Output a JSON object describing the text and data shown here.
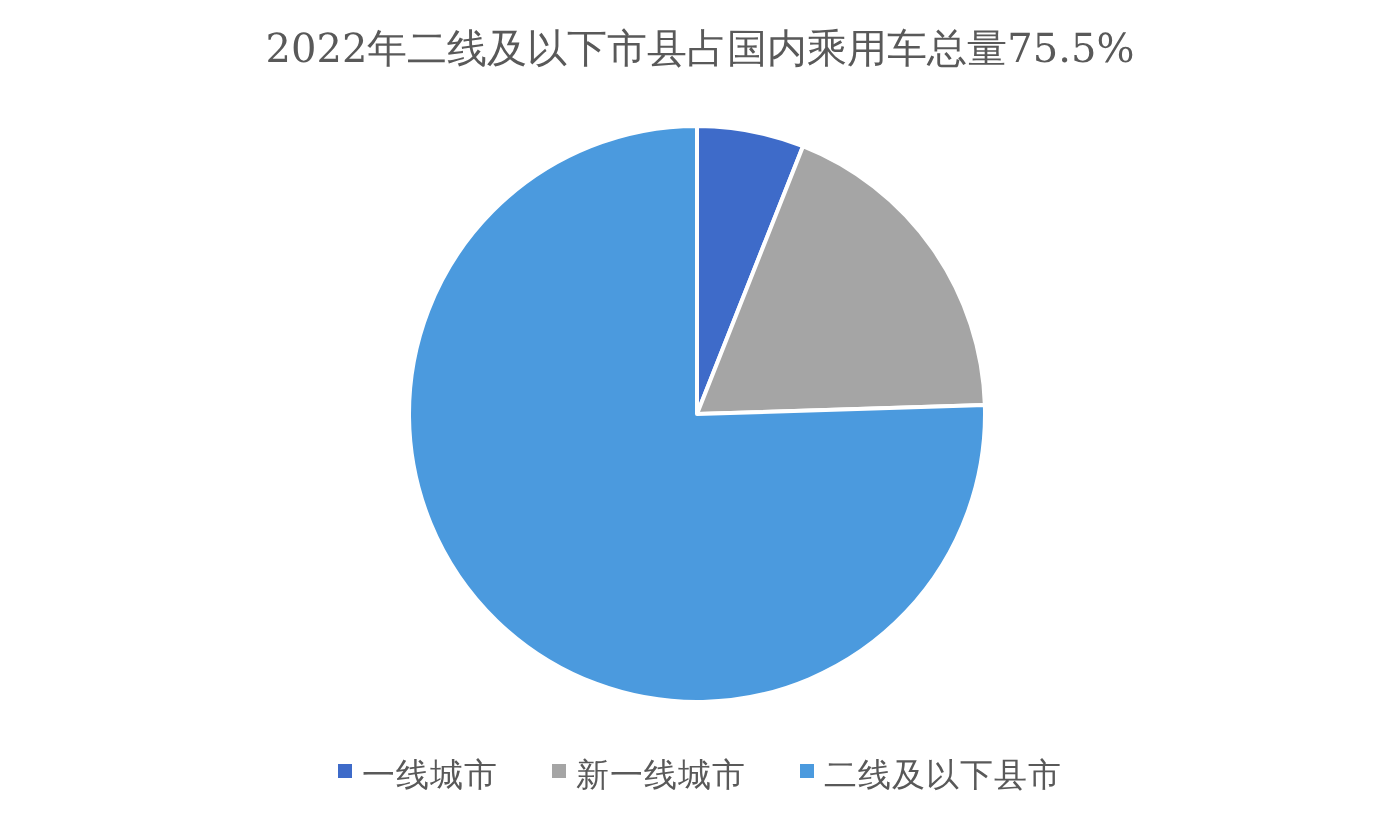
{
  "chart_data": {
    "type": "pie",
    "title": "2022年二线及以下市县占国内乘用车总量75.5%",
    "categories": [
      "一线城市",
      "新一线城市",
      "二线及以下县市"
    ],
    "values": [
      6,
      18.5,
      75.5
    ],
    "colors": [
      "#3e6bc9",
      "#a5a5a5",
      "#4b9ade"
    ],
    "legend": "bottom"
  }
}
